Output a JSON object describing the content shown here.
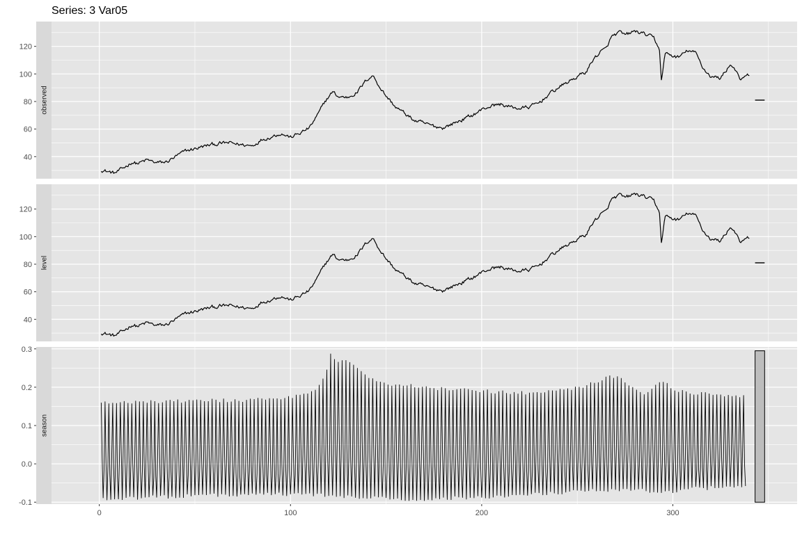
{
  "chart_data": {
    "type": "line",
    "title": "Series: 3 Var05",
    "x_ticks": [
      0,
      100,
      200,
      300
    ],
    "x_range": [
      -25,
      365
    ],
    "grid": true,
    "colors": {
      "panel_bg": "#e5e5e5",
      "grid": "#ffffff",
      "strip_bg": "#d9d9d9",
      "line": "#000000",
      "bar_fill": "#bdbdbd"
    },
    "panels": [
      {
        "name": "observed",
        "ylim": [
          24,
          138
        ],
        "y_ticks": [
          40,
          60,
          80,
          100,
          120
        ],
        "y_tick_labels": [
          "40",
          "60",
          "80",
          "100",
          "120"
        ],
        "keypoints": [
          [
            1,
            30.5
          ],
          [
            5,
            29
          ],
          [
            8,
            28
          ],
          [
            12,
            31
          ],
          [
            17,
            36
          ],
          [
            20,
            35
          ],
          [
            25,
            37.5
          ],
          [
            30,
            35.5
          ],
          [
            35,
            36
          ],
          [
            40,
            40
          ],
          [
            45,
            44
          ],
          [
            52,
            46.5
          ],
          [
            58,
            48.5
          ],
          [
            63,
            49.5
          ],
          [
            68,
            50
          ],
          [
            75,
            48.5
          ],
          [
            80,
            48
          ],
          [
            85,
            52.5
          ],
          [
            90,
            54.5
          ],
          [
            95,
            57
          ],
          [
            100,
            54
          ],
          [
            105,
            57
          ],
          [
            110,
            61
          ],
          [
            115,
            72
          ],
          [
            118,
            80
          ],
          [
            122,
            87
          ],
          [
            125,
            83.5
          ],
          [
            130,
            83
          ],
          [
            135,
            87
          ],
          [
            140,
            96
          ],
          [
            143,
            99
          ],
          [
            147,
            90
          ],
          [
            150,
            84
          ],
          [
            155,
            76
          ],
          [
            160,
            71
          ],
          [
            165,
            66
          ],
          [
            170,
            64
          ],
          [
            175,
            62
          ],
          [
            180,
            61
          ],
          [
            185,
            64
          ],
          [
            190,
            67
          ],
          [
            195,
            70
          ],
          [
            200,
            74
          ],
          [
            205,
            77
          ],
          [
            210,
            78
          ],
          [
            215,
            76
          ],
          [
            220,
            75
          ],
          [
            225,
            76
          ],
          [
            230,
            79
          ],
          [
            235,
            85
          ],
          [
            240,
            90
          ],
          [
            245,
            94
          ],
          [
            250,
            98
          ],
          [
            255,
            102
          ],
          [
            258,
            110
          ],
          [
            262,
            116
          ],
          [
            265,
            118
          ],
          [
            268,
            127
          ],
          [
            272,
            130
          ],
          [
            275,
            128
          ],
          [
            280,
            131
          ],
          [
            285,
            129
          ],
          [
            290,
            126
          ],
          [
            293,
            118
          ],
          [
            294,
            95
          ],
          [
            296,
            115
          ],
          [
            300,
            113
          ],
          [
            303,
            112
          ],
          [
            308,
            117
          ],
          [
            312,
            115
          ],
          [
            316,
            104
          ],
          [
            320,
            98
          ],
          [
            325,
            97
          ],
          [
            330,
            107
          ],
          [
            333,
            103
          ],
          [
            335,
            95
          ],
          [
            337,
            97
          ],
          [
            340,
            99
          ]
        ],
        "level_keypoints": [
          [
            343,
            81
          ],
          [
            348,
            81
          ]
        ]
      },
      {
        "name": "level",
        "ylim": [
          24,
          138
        ],
        "y_ticks": [
          40,
          60,
          80,
          100,
          120
        ],
        "y_tick_labels": [
          "40",
          "60",
          "80",
          "100",
          "120"
        ],
        "keypoints": [
          [
            1,
            30.5
          ],
          [
            5,
            29
          ],
          [
            8,
            28
          ],
          [
            12,
            31
          ],
          [
            17,
            36
          ],
          [
            20,
            35
          ],
          [
            25,
            37.5
          ],
          [
            30,
            35.5
          ],
          [
            35,
            36
          ],
          [
            40,
            40
          ],
          [
            45,
            44
          ],
          [
            52,
            46.5
          ],
          [
            58,
            48.5
          ],
          [
            63,
            49.5
          ],
          [
            68,
            50
          ],
          [
            75,
            48.5
          ],
          [
            80,
            48
          ],
          [
            85,
            52.5
          ],
          [
            90,
            54.5
          ],
          [
            95,
            57
          ],
          [
            100,
            54
          ],
          [
            105,
            57
          ],
          [
            110,
            61
          ],
          [
            115,
            72
          ],
          [
            118,
            80
          ],
          [
            122,
            87
          ],
          [
            125,
            83.5
          ],
          [
            130,
            83
          ],
          [
            135,
            87
          ],
          [
            140,
            96
          ],
          [
            143,
            99
          ],
          [
            147,
            90
          ],
          [
            150,
            84
          ],
          [
            155,
            76
          ],
          [
            160,
            71
          ],
          [
            165,
            66
          ],
          [
            170,
            64
          ],
          [
            175,
            62
          ],
          [
            180,
            61
          ],
          [
            185,
            64
          ],
          [
            190,
            67
          ],
          [
            195,
            70
          ],
          [
            200,
            74
          ],
          [
            205,
            77
          ],
          [
            210,
            78
          ],
          [
            215,
            76
          ],
          [
            220,
            75
          ],
          [
            225,
            76
          ],
          [
            230,
            79
          ],
          [
            235,
            85
          ],
          [
            240,
            90
          ],
          [
            245,
            94
          ],
          [
            250,
            98
          ],
          [
            255,
            102
          ],
          [
            258,
            110
          ],
          [
            262,
            116
          ],
          [
            265,
            118
          ],
          [
            268,
            127
          ],
          [
            272,
            130
          ],
          [
            275,
            128
          ],
          [
            280,
            131
          ],
          [
            285,
            129
          ],
          [
            290,
            126
          ],
          [
            293,
            118
          ],
          [
            294,
            95
          ],
          [
            296,
            115
          ],
          [
            300,
            113
          ],
          [
            303,
            112
          ],
          [
            308,
            117
          ],
          [
            312,
            115
          ],
          [
            316,
            104
          ],
          [
            320,
            98
          ],
          [
            325,
            97
          ],
          [
            330,
            107
          ],
          [
            333,
            103
          ],
          [
            335,
            95
          ],
          [
            337,
            97
          ],
          [
            340,
            99
          ]
        ],
        "level_keypoints": [
          [
            343,
            81
          ],
          [
            348,
            81
          ]
        ]
      },
      {
        "name": "season",
        "ylim": [
          -0.105,
          0.305
        ],
        "y_ticks": [
          -0.1,
          0.0,
          0.1,
          0.2,
          0.3
        ],
        "y_tick_labels": [
          "-0.1",
          "0.0",
          "0.1",
          "0.2",
          "0.3"
        ],
        "upper_envelope": [
          [
            1,
            0.165
          ],
          [
            40,
            0.168
          ],
          [
            80,
            0.172
          ],
          [
            110,
            0.185
          ],
          [
            118,
            0.23
          ],
          [
            121,
            0.292
          ],
          [
            125,
            0.27
          ],
          [
            130,
            0.275
          ],
          [
            140,
            0.235
          ],
          [
            150,
            0.215
          ],
          [
            160,
            0.21
          ],
          [
            180,
            0.2
          ],
          [
            200,
            0.195
          ],
          [
            220,
            0.19
          ],
          [
            240,
            0.195
          ],
          [
            255,
            0.21
          ],
          [
            265,
            0.23
          ],
          [
            270,
            0.235
          ],
          [
            278,
            0.21
          ],
          [
            285,
            0.19
          ],
          [
            295,
            0.22
          ],
          [
            300,
            0.2
          ],
          [
            310,
            0.185
          ],
          [
            320,
            0.19
          ],
          [
            338,
            0.18
          ]
        ],
        "lower_envelope": [
          [
            1,
            -0.098
          ],
          [
            40,
            -0.09
          ],
          [
            80,
            -0.085
          ],
          [
            110,
            -0.085
          ],
          [
            130,
            -0.09
          ],
          [
            150,
            -0.095
          ],
          [
            165,
            -0.1
          ],
          [
            185,
            -0.095
          ],
          [
            210,
            -0.09
          ],
          [
            240,
            -0.08
          ],
          [
            260,
            -0.075
          ],
          [
            280,
            -0.07
          ],
          [
            295,
            -0.08
          ],
          [
            310,
            -0.07
          ],
          [
            338,
            -0.065
          ]
        ],
        "range_bar": [
          -0.1,
          0.295
        ]
      }
    ]
  }
}
